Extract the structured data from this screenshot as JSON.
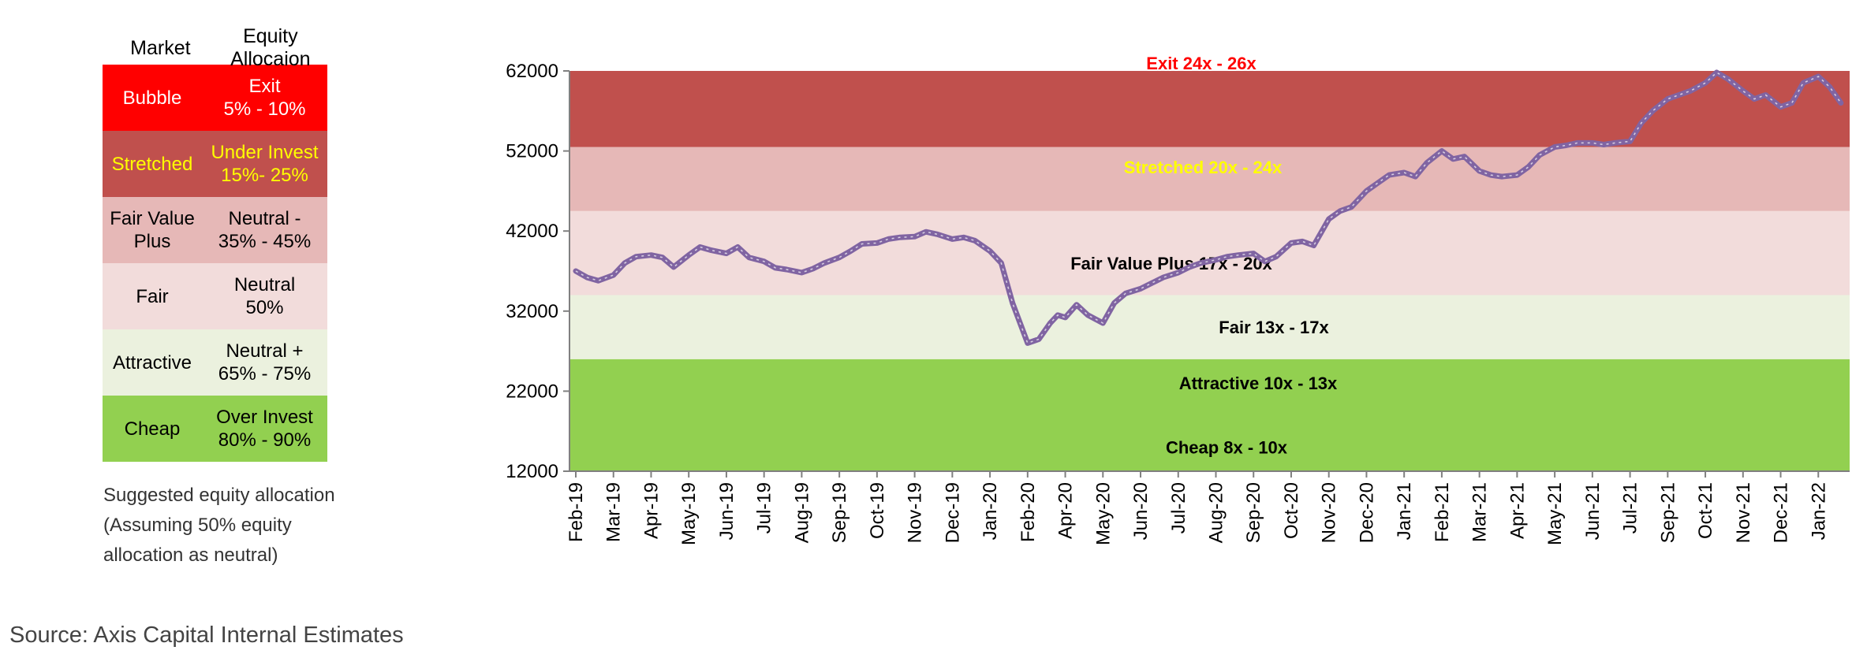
{
  "table": {
    "headers": [
      "Market",
      "Equity Allocaion"
    ],
    "rows": [
      {
        "market": "Bubble",
        "allocation": "Exit\n5% - 10%",
        "bg": "#FF0000",
        "color": "#FFFFFF"
      },
      {
        "market": "Stretched",
        "allocation": "Under Invest\n15%- 25%",
        "bg": "#C0504D",
        "color": "#FFFF00"
      },
      {
        "market": "Fair Value\nPlus",
        "allocation": "Neutral -\n35% - 45%",
        "bg": "#E6B8B7",
        "color": "#000000"
      },
      {
        "market": "Fair",
        "allocation": "Neutral\n50%",
        "bg": "#F2DCDB",
        "color": "#000000"
      },
      {
        "market": "Attractive",
        "allocation": "Neutral +\n65% - 75%",
        "bg": "#EBF1DE",
        "color": "#000000"
      },
      {
        "market": "Cheap",
        "allocation": "Over Invest\n80% - 90%",
        "bg": "#92D050",
        "color": "#000000"
      }
    ]
  },
  "note_lines": [
    "Suggested equity allocation",
    "(Assuming 50% equity",
    "allocation as neutral)"
  ],
  "source": "Source: Axis Capital Internal Estimates",
  "chart_data": {
    "type": "area",
    "title": "",
    "xlabel": "",
    "ylabel": "",
    "ylim": [
      12000,
      62000
    ],
    "yticks": [
      12000,
      22000,
      32000,
      42000,
      52000,
      62000
    ],
    "x_labels": [
      "Feb-19",
      "Mar-19",
      "Apr-19",
      "May-19",
      "Jun-19",
      "Jul-19",
      "Aug-19",
      "Sep-19",
      "Oct-19",
      "Nov-19",
      "Dec-19",
      "Jan-20",
      "Feb-20",
      "Apr-20",
      "May-20",
      "Jun-20",
      "Jul-20",
      "Aug-20",
      "Sep-20",
      "Oct-20",
      "Nov-20",
      "Dec-20",
      "Jan-21",
      "Feb-21",
      "Mar-21",
      "Apr-21",
      "May-21",
      "Jun-21",
      "Jul-21",
      "Sep-21",
      "Oct-21",
      "Nov-21",
      "Dec-21",
      "Jan-22"
    ],
    "bands": [
      {
        "name": "Cheap 8x - 10x",
        "from": 12000,
        "to": 26000,
        "color": "#92D050",
        "text_color": "#000000"
      },
      {
        "name": "Attractive  10x - 13x",
        "from": 12000,
        "to": 26000,
        "color": "#92D050",
        "text_color": "#000000"
      },
      {
        "name": "Fair 13x - 17x",
        "from": 26000,
        "to": 34000,
        "color": "#EBF1DE",
        "text_color": "#000000"
      },
      {
        "name": "Fair Value Plus 17x - 20x",
        "from": 34000,
        "to": 44500,
        "color": "#F2DCDB",
        "text_color": "#000000"
      },
      {
        "name": "Stretched 20x - 24x",
        "from": 44500,
        "to": 52500,
        "color": "#E6B8B7",
        "text_color": "#FFFF00"
      },
      {
        "name": "Exit 24x - 26x",
        "from": 52500,
        "to": 62000,
        "color": "#C0504D",
        "text_color": "#FF0000"
      }
    ],
    "series": [
      {
        "color": "#8064A2",
        "x": [
          0,
          0.3,
          0.6,
          1,
          1.3,
          1.6,
          2,
          2.3,
          2.6,
          3,
          3.3,
          3.6,
          4,
          4.3,
          4.6,
          5,
          5.3,
          5.6,
          6,
          6.3,
          6.6,
          7,
          7.3,
          7.6,
          8,
          8.3,
          8.6,
          9,
          9.3,
          9.6,
          10,
          10.3,
          10.6,
          11,
          11.3,
          11.6,
          12,
          12.3,
          12.6,
          12.8,
          13,
          13.3,
          13.6,
          14,
          14.3,
          14.6,
          15,
          15.3,
          15.6,
          16,
          16.3,
          16.6,
          17,
          17.3,
          17.6,
          18,
          18.3,
          18.6,
          19,
          19.3,
          19.6,
          20,
          20.3,
          20.6,
          21,
          21.3,
          21.6,
          22,
          22.3,
          22.6,
          23,
          23.3,
          23.6,
          24,
          24.3,
          24.6,
          25,
          25.3,
          25.6,
          26,
          26.3,
          26.6,
          27,
          27.3,
          27.6,
          28,
          28.3,
          28.6,
          29,
          29.3,
          29.6,
          30,
          30.3,
          30.6,
          31,
          31.3,
          31.6,
          32,
          32.3,
          32.6,
          33,
          33.3,
          33.6
        ],
        "values": [
          37000,
          36200,
          35800,
          36500,
          38000,
          38800,
          39000,
          38700,
          37500,
          39000,
          40000,
          39600,
          39200,
          40000,
          38700,
          38200,
          37400,
          37200,
          36800,
          37300,
          38000,
          38700,
          39500,
          40400,
          40500,
          41000,
          41200,
          41300,
          41900,
          41600,
          41000,
          41200,
          40800,
          39500,
          38000,
          33000,
          28000,
          28500,
          30500,
          31500,
          31200,
          32800,
          31500,
          30500,
          33000,
          34200,
          34800,
          35500,
          36200,
          36800,
          37500,
          38000,
          38400,
          38800,
          39000,
          39200,
          38200,
          38800,
          40500,
          40700,
          40200,
          43500,
          44500,
          45000,
          47000,
          48000,
          49000,
          49300,
          48800,
          50500,
          52000,
          51000,
          51300,
          49500,
          49000,
          48800,
          49000,
          50000,
          51500,
          52500,
          52700,
          53000,
          53000,
          52800,
          53000,
          53200,
          55500,
          57000,
          58500,
          59000,
          59500,
          60500,
          61800,
          61000,
          59500,
          58500,
          59000,
          57500,
          58000,
          60500,
          61300,
          60000,
          58000
        ]
      }
    ]
  }
}
